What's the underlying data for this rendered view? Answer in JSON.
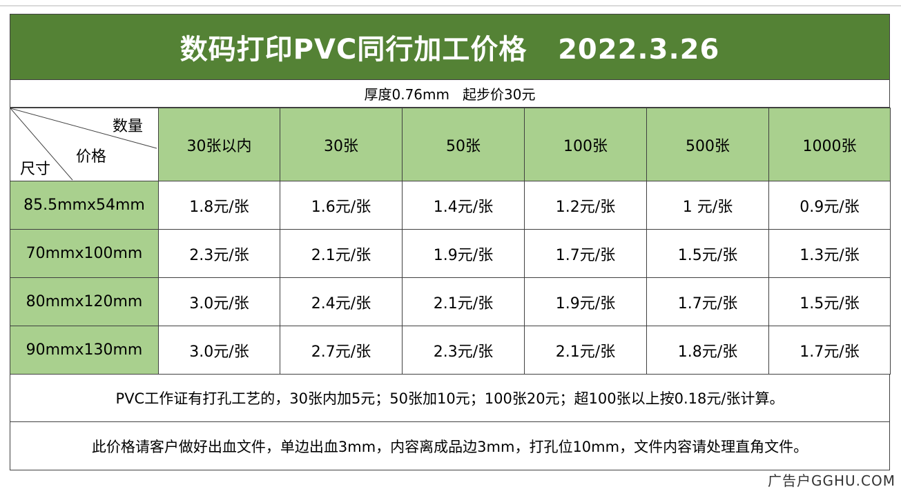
{
  "title": "数码打印PVC同行加工价格   2022.3.26",
  "subtitle": "厚度0.76mm   起步价30元",
  "corner": {
    "qty_label": "数量",
    "price_label": "价格",
    "size_label": "尺寸"
  },
  "columns": [
    "30张以内",
    "30张",
    "50张",
    "100张",
    "500张",
    "1000张"
  ],
  "rows": [
    {
      "size": "85.5mmx54mm",
      "prices": [
        "1.8元/张",
        "1.6元/张",
        "1.4元/张",
        "1.2元/张",
        "1 元/张",
        "0.9元/张"
      ]
    },
    {
      "size": "70mmx100mm",
      "prices": [
        "2.3元/张",
        "2.1元/张",
        "1.9元/张",
        "1.7元/张",
        "1.5元/张",
        "1.3元/张"
      ]
    },
    {
      "size": "80mmx120mm",
      "prices": [
        "3.0元/张",
        "2.4元/张",
        "2.1元/张",
        "1.9元/张",
        "1.7元/张",
        "1.5元/张"
      ]
    },
    {
      "size": "90mmx130mm",
      "prices": [
        "3.0元/张",
        "2.7元/张",
        "2.3元/张",
        "2.1元/张",
        "1.8元/张",
        "1.7元/张"
      ]
    }
  ],
  "notes": [
    "PVC工作证有打孔工艺的，30张内加5元；50张加10元；100张20元；超100张以上按0.18元/张计算。",
    "此价格请客户做好出血文件，单边出血3mm，内容离成品边3mm，打孔位10mm，文件内容请处理直角文件。"
  ],
  "watermark": "广告户GGHU.COM",
  "colors": {
    "title_bg": "#548235",
    "header_bg": "#a9d08e",
    "border": "#3f3f3f"
  }
}
